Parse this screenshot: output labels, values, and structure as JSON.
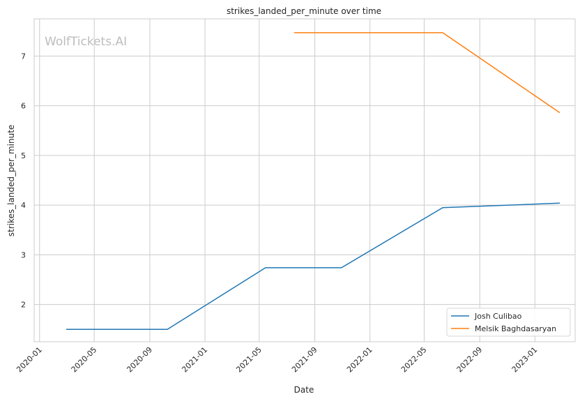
{
  "chart_data": {
    "type": "line",
    "title": "strikes_landed_per_minute over time",
    "xlabel": "Date",
    "ylabel": "strikes_landed_per_minute",
    "watermark": "WolfTickets.AI",
    "x_ticks": [
      "2020-01",
      "2020-05",
      "2020-09",
      "2021-01",
      "2021-05",
      "2021-09",
      "2022-01",
      "2022-05",
      "2022-09",
      "2023-01"
    ],
    "y_ticks": [
      2,
      3,
      4,
      5,
      6,
      7
    ],
    "xlim": [
      "2019-12-20",
      "2023-03-31"
    ],
    "ylim": [
      1.25,
      7.75
    ],
    "grid": true,
    "legend_position": "lower-right",
    "series": [
      {
        "name": "Josh Culibao",
        "color": "#1f77b4",
        "points": [
          {
            "x": "2020-02-29",
            "y": 1.5
          },
          {
            "x": "2020-10-10",
            "y": 1.5
          },
          {
            "x": "2021-05-15",
            "y": 2.74
          },
          {
            "x": "2021-10-30",
            "y": 2.74
          },
          {
            "x": "2022-06-11",
            "y": 3.95
          },
          {
            "x": "2023-02-25",
            "y": 4.04
          }
        ]
      },
      {
        "name": "Melsik Baghdasaryan",
        "color": "#ff7f0e",
        "points": [
          {
            "x": "2021-07-17",
            "y": 7.47
          },
          {
            "x": "2022-06-11",
            "y": 7.47
          },
          {
            "x": "2023-02-25",
            "y": 5.86
          }
        ]
      }
    ]
  }
}
